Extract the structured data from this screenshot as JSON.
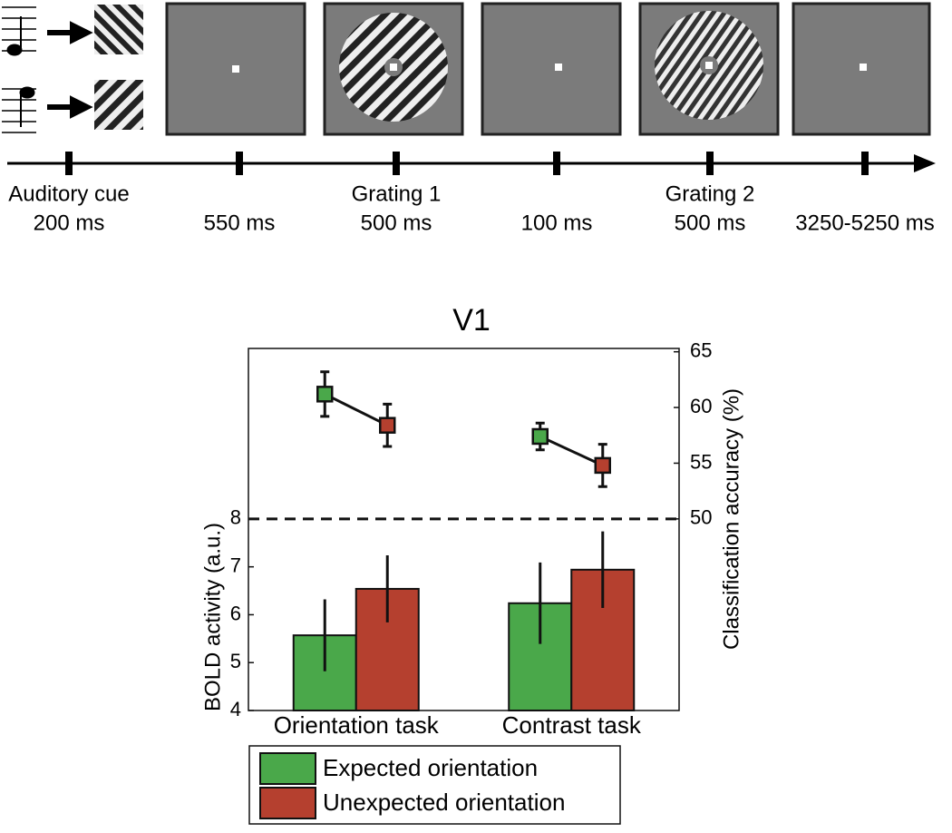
{
  "timeline": {
    "events": [
      {
        "label": "Auditory cue",
        "duration": "200 ms"
      },
      {
        "duration": "550 ms"
      },
      {
        "label": "Grating 1",
        "duration": "500 ms"
      },
      {
        "duration": "100 ms"
      },
      {
        "label": "Grating 2",
        "duration": "500 ms"
      },
      {
        "duration": "3250-5250 ms"
      }
    ]
  },
  "chart_data": {
    "type": "bar",
    "title": "V1",
    "y_label": "BOLD activity (a.u.)",
    "y2_label": "Classification accuracy (%)",
    "categories": [
      "Orientation task",
      "Contrast task"
    ],
    "ylim": [
      4,
      11.56
    ],
    "yticks": [
      4,
      5,
      6,
      7,
      8
    ],
    "y2lim": [
      32.8,
      65.3
    ],
    "y2ticks": [
      50,
      55,
      60,
      65
    ],
    "series": [
      {
        "name": "Expected orientation",
        "color": "#4aa84a",
        "values": [
          5.57,
          6.24
        ],
        "errors": [
          0.75,
          0.85
        ],
        "values_y2": [
          61.2,
          57.4
        ],
        "errors_y2": [
          2.0,
          1.2
        ]
      },
      {
        "name": "Unexpected orientation",
        "color": "#b5402f",
        "values": [
          6.54,
          6.94
        ],
        "errors": [
          0.7,
          0.8
        ],
        "values_y2": [
          58.4,
          54.8
        ],
        "errors_y2": [
          1.9,
          1.9
        ]
      }
    ]
  }
}
